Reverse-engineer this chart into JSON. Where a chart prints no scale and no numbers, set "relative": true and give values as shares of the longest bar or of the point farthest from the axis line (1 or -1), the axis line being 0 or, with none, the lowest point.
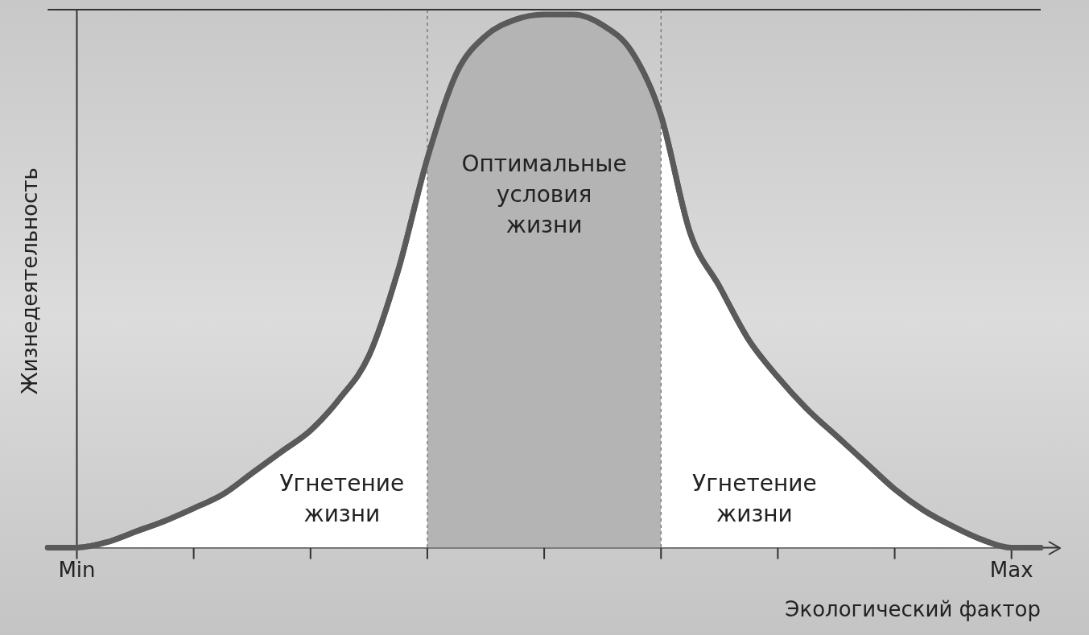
{
  "chart_data": {
    "type": "area",
    "relative": true,
    "xlabel": "Экологический фактор",
    "ylabel": "Жизнедеятельность",
    "categories": [
      null,
      "Min",
      null,
      null,
      null,
      null,
      null,
      null,
      null,
      null,
      null,
      null,
      null,
      null,
      null,
      null,
      null,
      null,
      null,
      null,
      null,
      null,
      null,
      null,
      null,
      null,
      null,
      null,
      null,
      null,
      null,
      null,
      null,
      "Max",
      null
    ],
    "series": [
      {
        "color": "#5a5a5a",
        "values": [
          0,
          0,
          0.01,
          0.03,
          0.05,
          0.074,
          0.1,
          0.14,
          0.18,
          0.22,
          0.28,
          0.36,
          0.52,
          0.73,
          0.89,
          0.96,
          0.99,
          1,
          1,
          0.98,
          0.93,
          0.81,
          0.59,
          0.49,
          0.39,
          0.32,
          0.26,
          0.21,
          0.16,
          0.11,
          0.07,
          0.04,
          0.015,
          0,
          0
        ]
      },
      {
        "name": "Оптимальные условия жизни",
        "color": "#b4b4b4",
        "values": [
          null,
          null,
          null,
          null,
          null,
          null,
          null,
          null,
          null,
          null,
          null,
          null,
          null,
          0.73,
          0.89,
          0.96,
          0.99,
          1,
          1,
          0.98,
          0.93,
          0.81,
          null,
          null,
          null,
          null,
          null,
          null,
          null,
          null,
          null,
          null,
          null,
          null,
          null
        ]
      }
    ],
    "annotations": [
      "Угнетение жизни",
      "Угнетение жизни"
    ],
    "legend": false,
    "marker": "none",
    "line_style": "solid"
  }
}
